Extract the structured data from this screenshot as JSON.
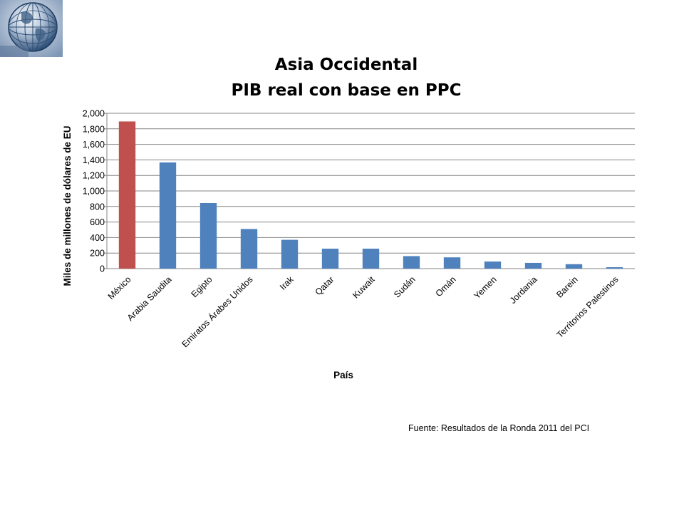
{
  "logo": {
    "icon": "globe-icon"
  },
  "source": "Fuente: Resultados de la Ronda 2011 del PCI",
  "chart_data": {
    "type": "bar",
    "title": [
      "Asia Occidental",
      "PIB real con base en PPC"
    ],
    "xlabel": "País",
    "ylabel": "Miles de millones de dólares de EU",
    "ylim": [
      0,
      2000
    ],
    "ytick_step": 200,
    "yticks": [
      "0",
      "200",
      "400",
      "600",
      "800",
      "1,000",
      "1,200",
      "1,400",
      "1,600",
      "1,800",
      "2,000"
    ],
    "grid": true,
    "legend": "none",
    "categories": [
      "México",
      "Arabia Saudita",
      "Egipto",
      "Emiratos Árabes Unidos",
      "Irak",
      "Qatar",
      "Kuwait",
      "Sudán",
      "Omán",
      "Yemen",
      "Jordania",
      "Barein",
      "Territorios Palestinos"
    ],
    "values": [
      1895,
      1367,
      844,
      510,
      371,
      257,
      257,
      161,
      145,
      91,
      74,
      57,
      18
    ],
    "colors": {
      "default": "#4f81bd",
      "highlight": "#c0504d",
      "grid": "#868686"
    },
    "highlight_index": 0
  }
}
